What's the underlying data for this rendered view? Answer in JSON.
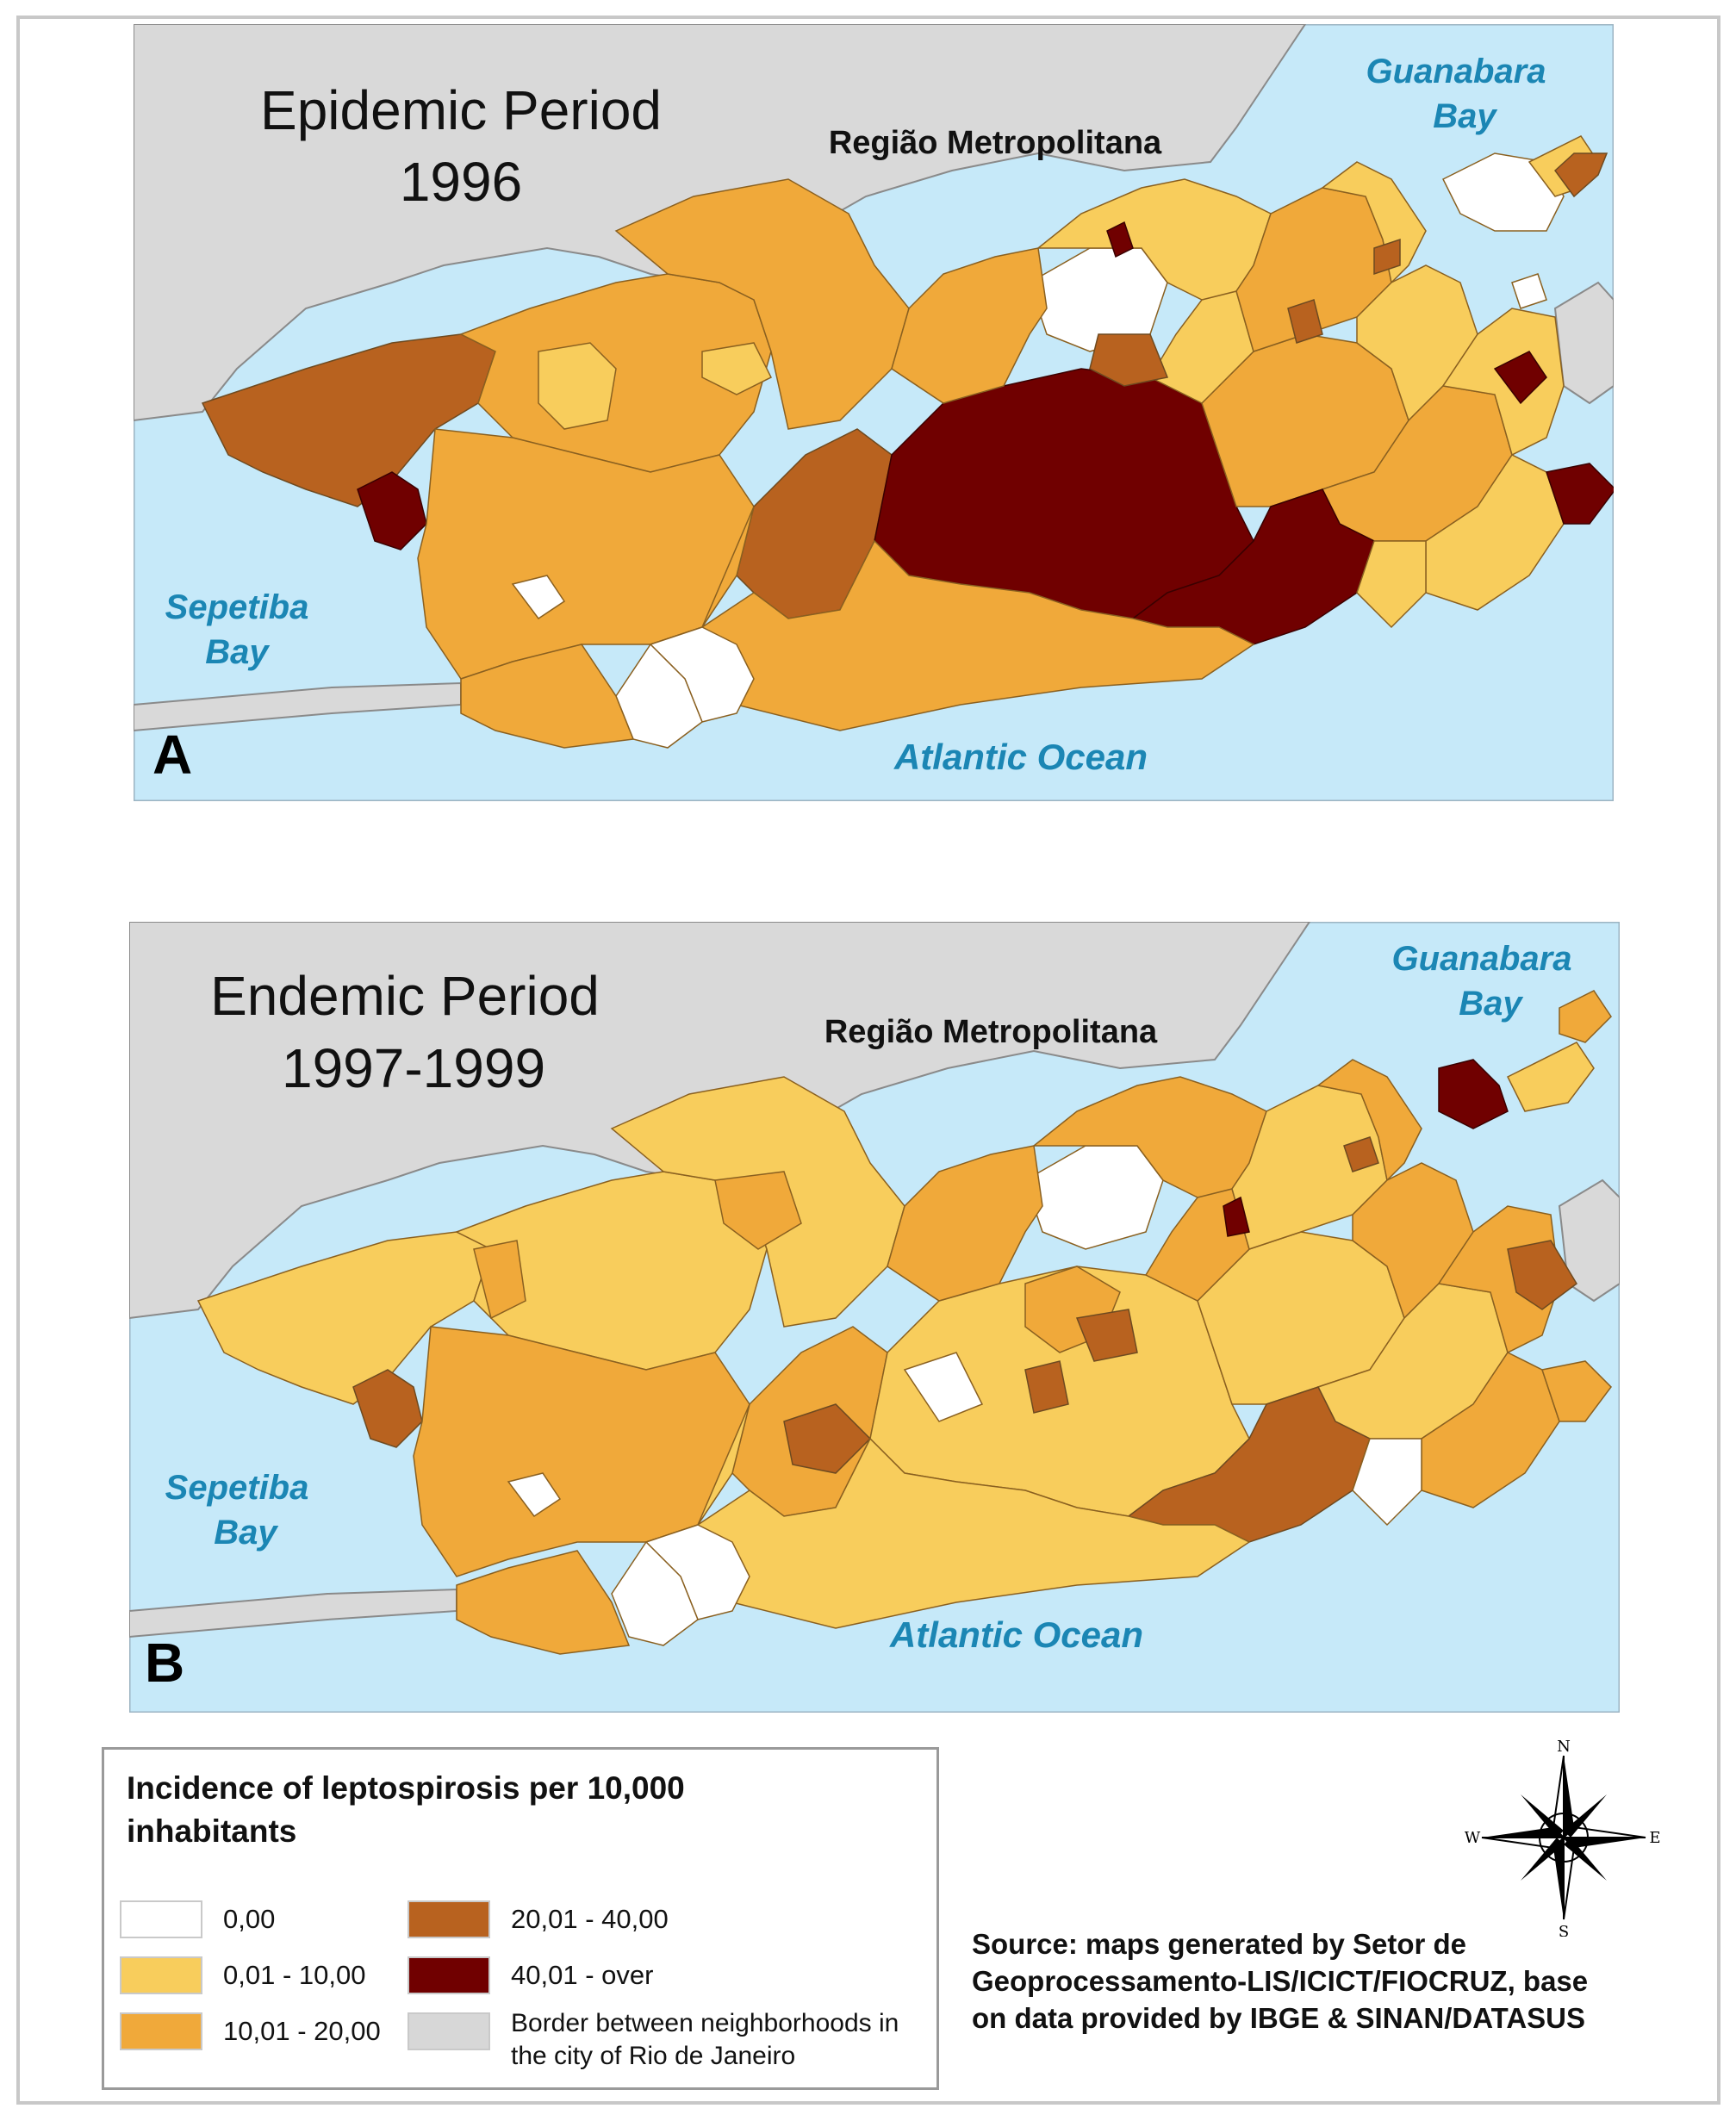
{
  "maps": [
    {
      "panel_letter": "A",
      "title_line1": "Epidemic Period",
      "title_line2": "1996",
      "region_label": "Região Metropolitana",
      "bay_north_line1": "Guanabara",
      "bay_north_line2": "Bay",
      "bay_west_line1": "Sepetiba",
      "bay_west_line2": "Bay",
      "ocean_label": "Atlantic Ocean"
    },
    {
      "panel_letter": "B",
      "title_line1": "Endemic Period",
      "title_line2": "1997-1999",
      "region_label": "Região Metropolitana",
      "bay_north_line1": "Guanabara",
      "bay_north_line2": "Bay",
      "bay_west_line1": "Sepetiba",
      "bay_west_line2": "Bay",
      "ocean_label": "Atlantic Ocean"
    }
  ],
  "legend": {
    "title": "Incidence of leptospirosis per 10,000 inhabitants",
    "items": [
      {
        "label": "0,00",
        "color": "#ffffff"
      },
      {
        "label": "0,01 - 10,00",
        "color": "#f8cd5c"
      },
      {
        "label": "10,01 - 20,00",
        "color": "#f0a93a"
      },
      {
        "label": "20,01 - 40,00",
        "color": "#b8621f"
      },
      {
        "label": "40,01 - over",
        "color": "#700000"
      },
      {
        "label": "Border between neighborhoods in the city of Rio de Janeiro",
        "color": "#d7d7d7"
      }
    ]
  },
  "compass": {
    "n": "N",
    "s": "S",
    "e": "E",
    "w": "W"
  },
  "source": "Source: maps generated by Setor de Geoprocessamento-LIS/ICICT/FIOCRUZ, base on data provided by IBGE & SINAN/DATASUS",
  "colors": {
    "water": "#c6e9f9",
    "land_outside": "#d9d9d9",
    "class_0": "#ffffff",
    "class_1": "#f8cd5c",
    "class_2": "#f0a93a",
    "class_3": "#b8621f",
    "class_4": "#700000"
  }
}
